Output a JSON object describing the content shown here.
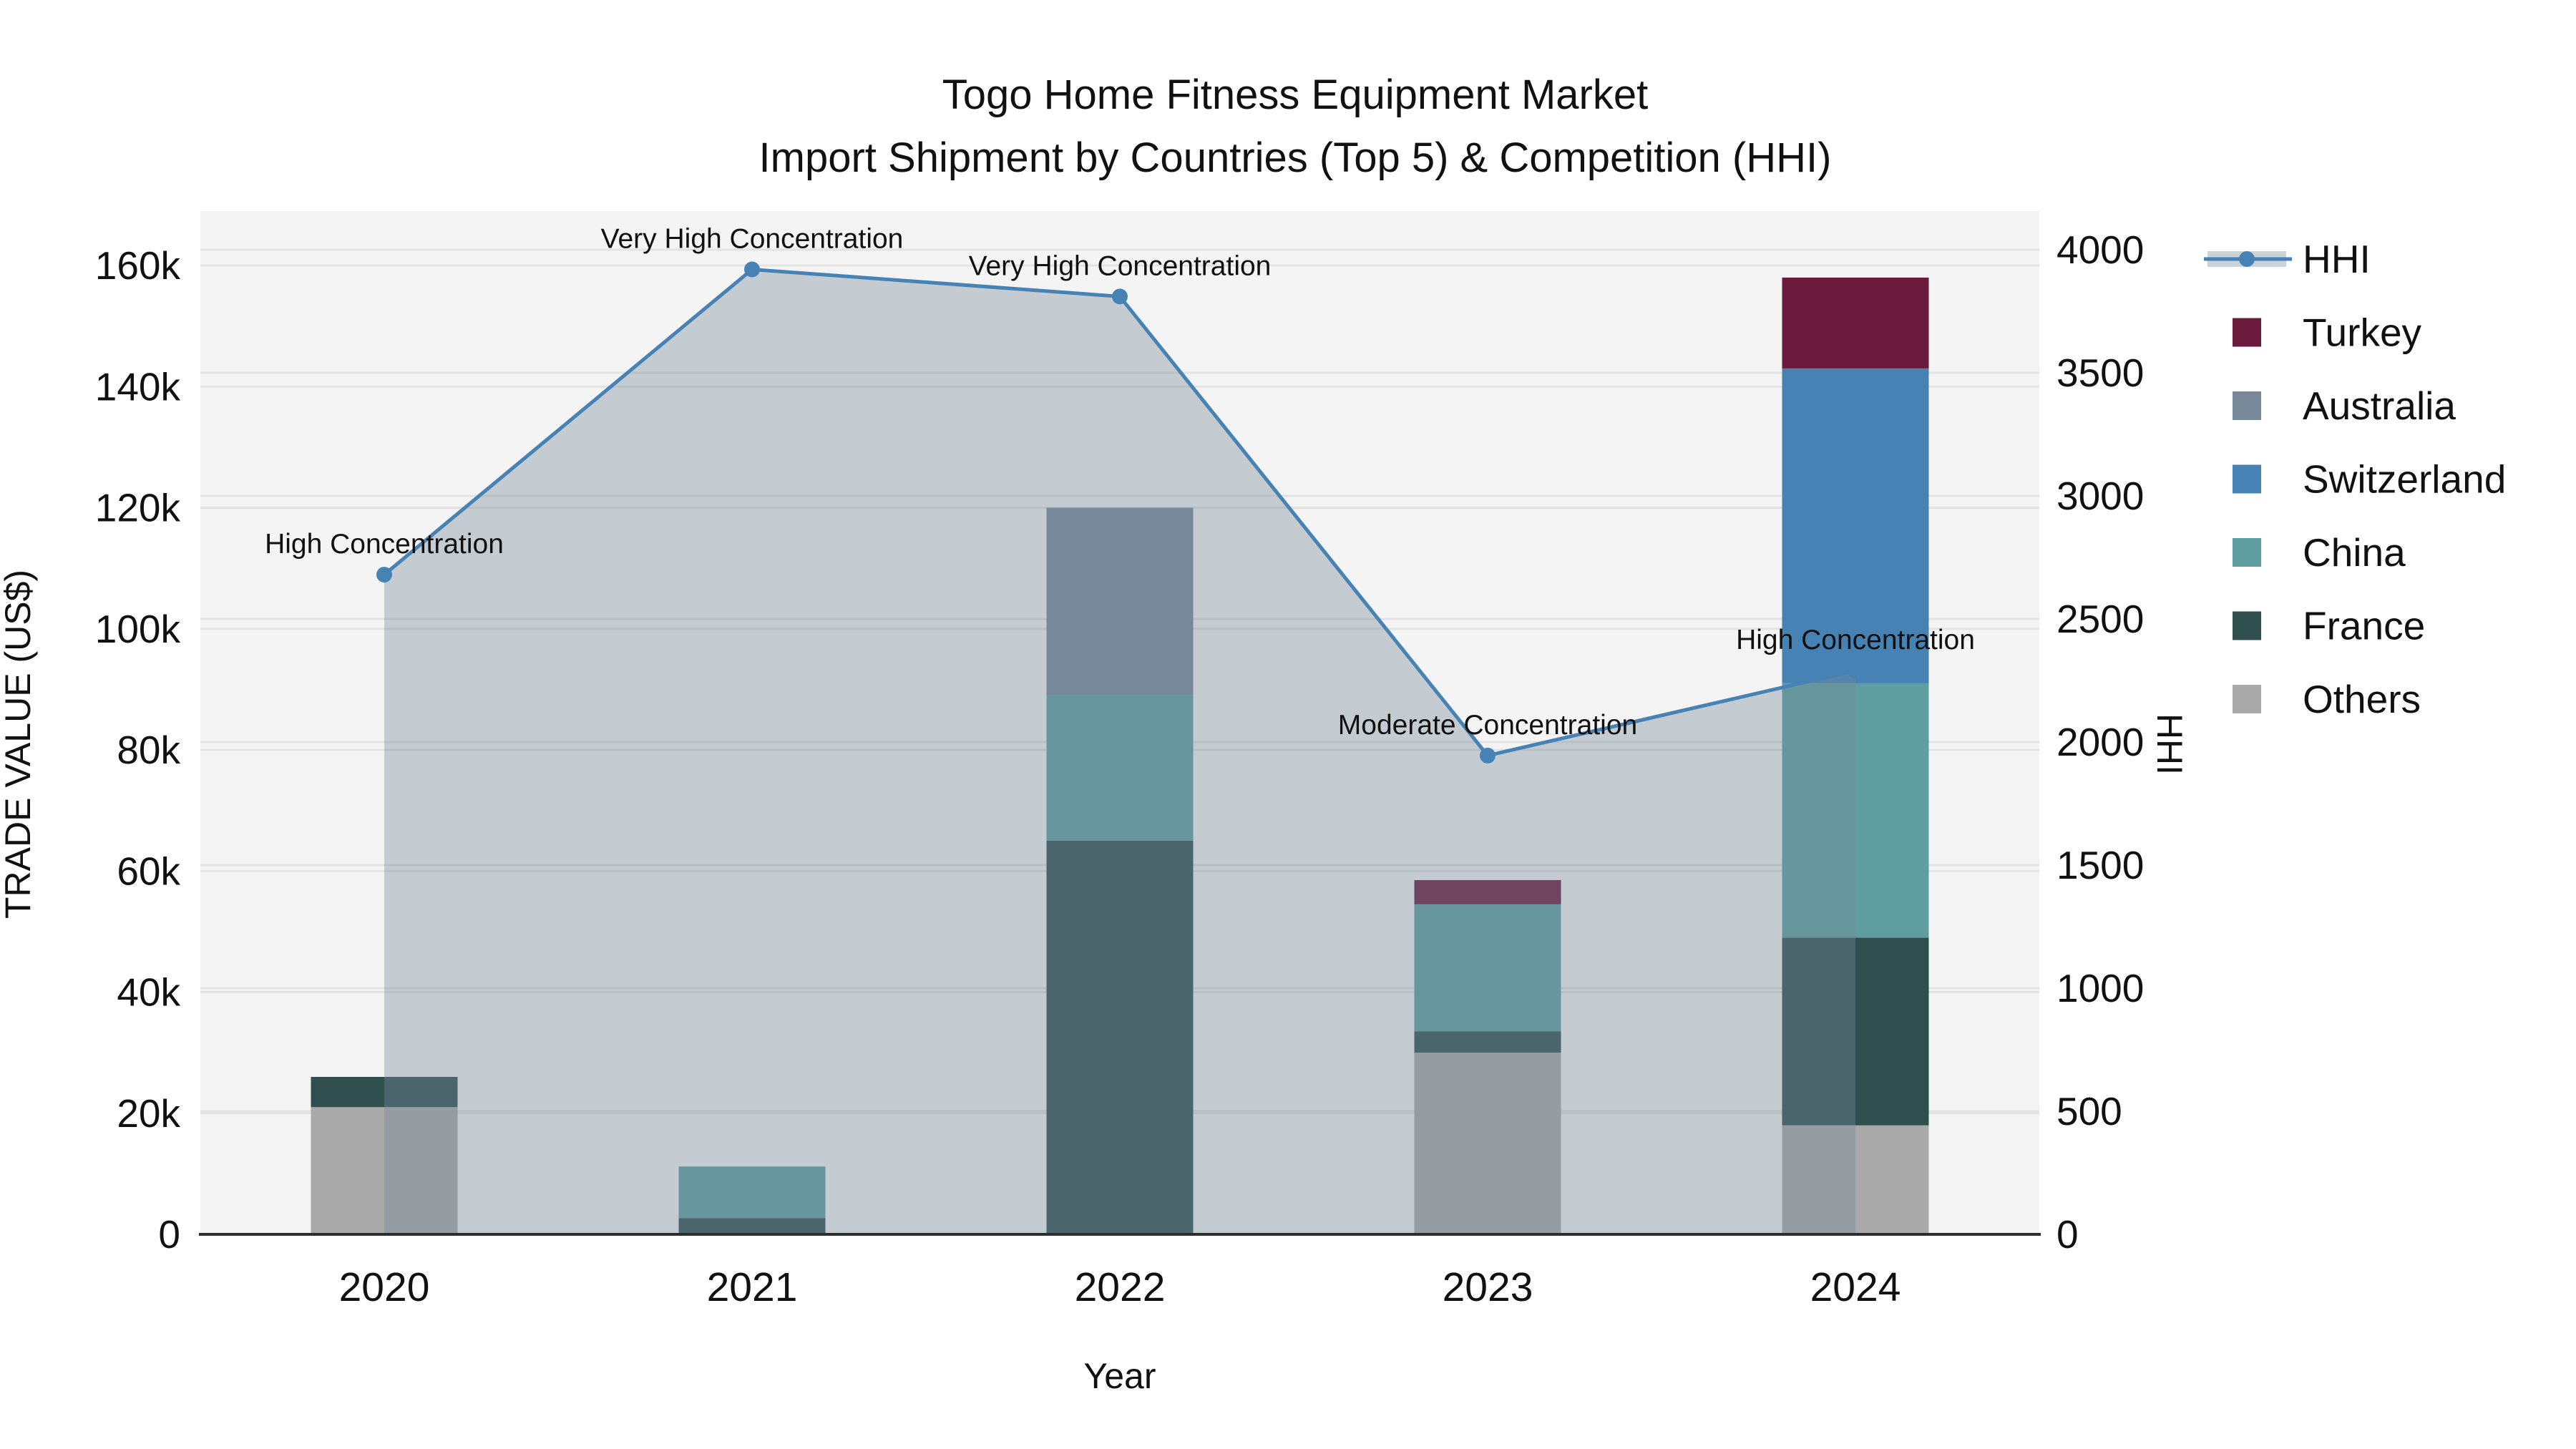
{
  "chart": {
    "title": "Togo Home Fitness Equipment Market",
    "subtitle": "Import Shipment by Countries (Top 5) & Competition (HHI)",
    "xlabel": "Year",
    "ylabel_left": "TRADE VALUE (US$)",
    "ylabel_right": "HHI"
  },
  "chart_data": {
    "type": "bar",
    "subtype": "stacked-bar (left axis, trade value US$) + HHI line with area fill (right axis)",
    "categories": [
      "2020",
      "2021",
      "2022",
      "2023",
      "2024"
    ],
    "bar_series": [
      {
        "name": "Others",
        "color": "#a9a9a9",
        "values": [
          21000,
          0,
          0,
          30000,
          18000
        ]
      },
      {
        "name": "France",
        "color": "#2f4f4f",
        "values": [
          5000,
          2700,
          65000,
          3500,
          31000
        ]
      },
      {
        "name": "China",
        "color": "#5f9ea0",
        "values": [
          0,
          8500,
          24000,
          21000,
          42000
        ]
      },
      {
        "name": "Switzerland",
        "color": "#4682b4",
        "values": [
          0,
          0,
          0,
          0,
          52000
        ]
      },
      {
        "name": "Australia",
        "color": "#778899",
        "values": [
          0,
          0,
          31000,
          0,
          0
        ]
      },
      {
        "name": "Turkey",
        "color": "#6a1b3c",
        "values": [
          0,
          0,
          0,
          4000,
          15000
        ]
      }
    ],
    "bar_totals": [
      26000,
      11200,
      120000,
      58500,
      158000
    ],
    "line_series": {
      "name": "HHI",
      "color": "#4682b4",
      "area_fill": "rgba(119,136,153,0.38)",
      "values": [
        2680,
        3920,
        3810,
        1945,
        2290
      ]
    },
    "annotations": [
      "High Concentration",
      "Very High Concentration",
      "Very High Concentration",
      "Moderate Concentration",
      "High Concentration"
    ],
    "left_axis": {
      "label": "TRADE VALUE (US$)",
      "tick_labels": [
        "0",
        "20k",
        "40k",
        "60k",
        "80k",
        "100k",
        "120k",
        "140k",
        "160k"
      ],
      "tick_values": [
        0,
        20000,
        40000,
        60000,
        80000,
        100000,
        120000,
        140000,
        160000
      ],
      "range": [
        0,
        167000
      ]
    },
    "right_axis": {
      "label": "HHI",
      "tick_labels": [
        "0",
        "500",
        "1000",
        "1500",
        "2000",
        "2500",
        "3000",
        "3500",
        "4000"
      ],
      "tick_values": [
        0,
        500,
        1000,
        1500,
        2000,
        2500,
        3000,
        3500,
        4000
      ],
      "range": [
        0,
        4000
      ]
    },
    "x_axis": {
      "label": "Year"
    },
    "legend": {
      "position": "right",
      "entries": [
        "HHI",
        "Turkey",
        "Australia",
        "Switzerland",
        "China",
        "France",
        "Others"
      ]
    },
    "grid": true,
    "plot_background": "#f4f4f4",
    "grid_color": "#e3e3e3",
    "axis_line_color": "#2e2e2e"
  }
}
